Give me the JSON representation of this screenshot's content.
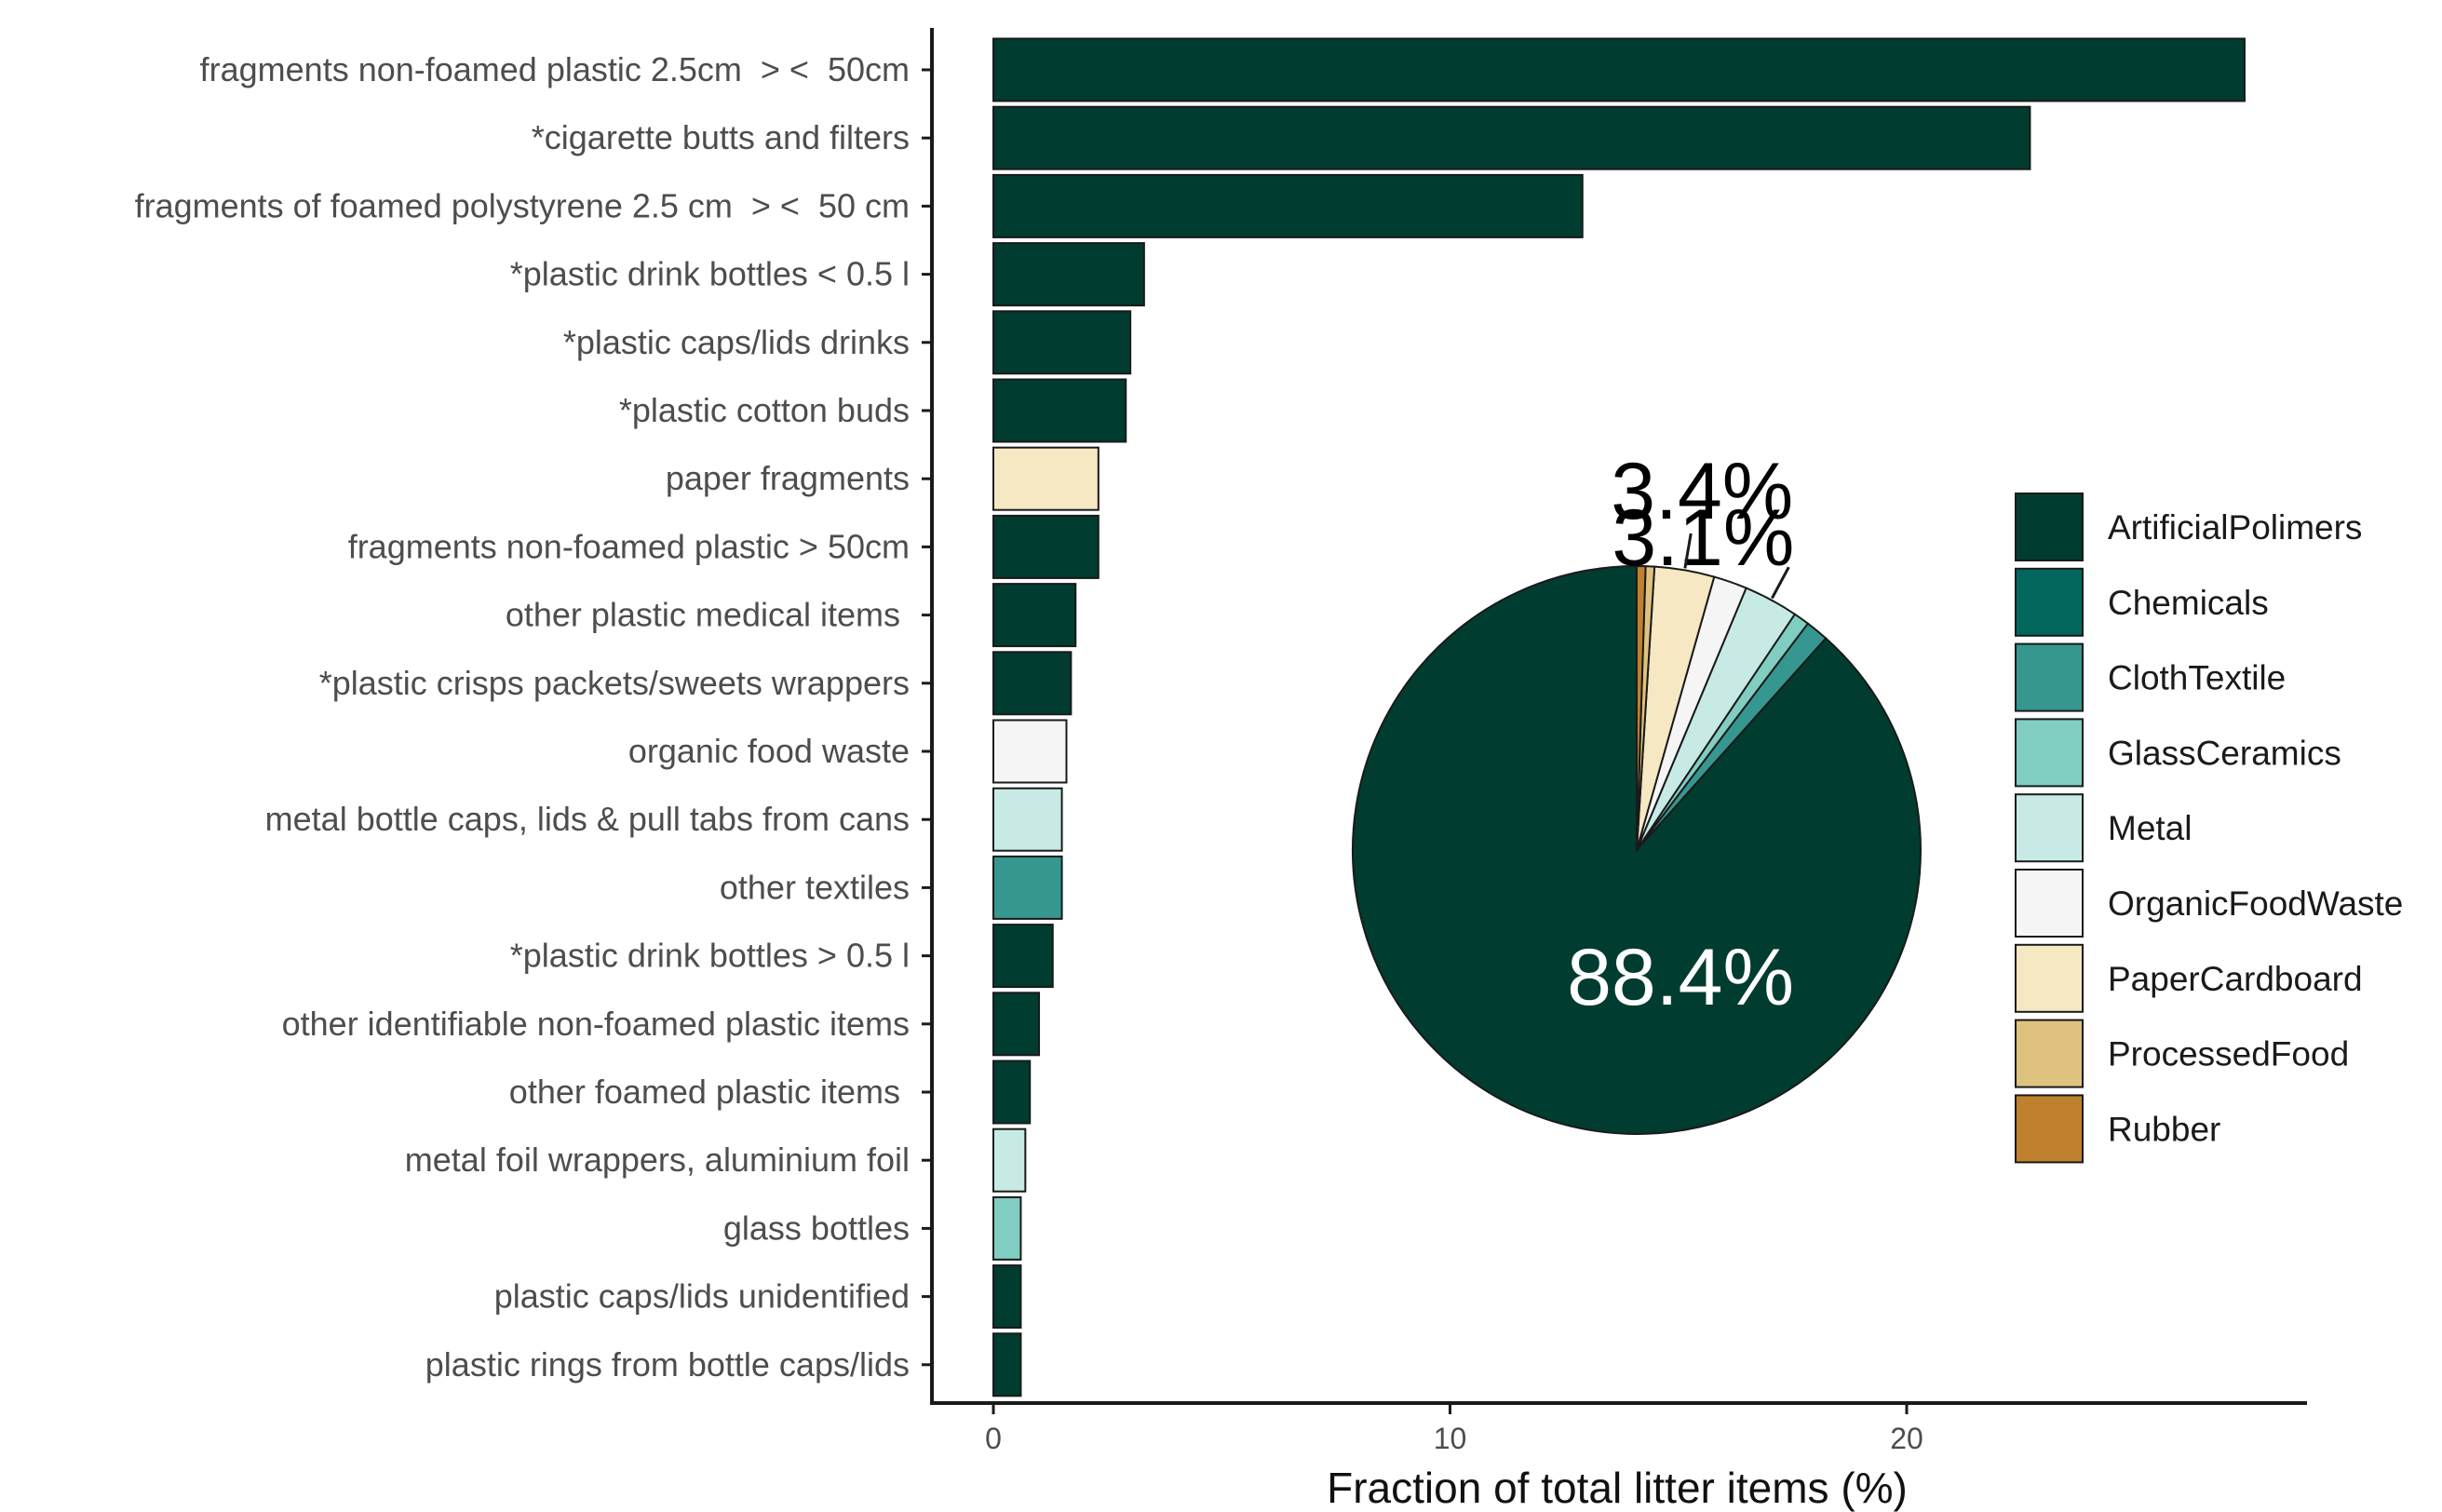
{
  "chart_data": [
    {
      "type": "bar",
      "orientation": "horizontal",
      "xlabel": "Fraction of total litter items (%)",
      "ylabel": "",
      "xlim": [
        0,
        28
      ],
      "xticks": [
        0,
        10,
        20
      ],
      "grid": false,
      "categories": [
        "fragments non-foamed plastic 2.5cm  > <  50cm",
        "*cigarette butts and filters",
        "fragments of foamed polystyrene 2.5 cm  > <  50 cm",
        "*plastic drink bottles < 0.5 l",
        "*plastic caps/lids drinks",
        "*plastic cotton buds",
        "paper fragments",
        "fragments non-foamed plastic > 50cm",
        "other plastic medical items ",
        "*plastic crisps packets/sweets wrappers",
        "organic food waste",
        "metal bottle caps, lids & pull tabs from cans",
        "other textiles",
        "*plastic drink bottles > 0.5 l",
        "other identifiable non-foamed plastic items",
        "other foamed plastic items ",
        "metal foil wrappers, aluminium foil",
        "glass bottles",
        "plastic caps/lids unidentified",
        "plastic rings from bottle caps/lids"
      ],
      "values": [
        27.4,
        22.7,
        12.9,
        3.3,
        3.0,
        2.9,
        2.3,
        2.3,
        1.8,
        1.7,
        1.6,
        1.5,
        1.5,
        1.3,
        1.0,
        0.8,
        0.7,
        0.6,
        0.6,
        0.6
      ],
      "material": [
        "ArtificialPolimers",
        "ArtificialPolimers",
        "ArtificialPolimers",
        "ArtificialPolimers",
        "ArtificialPolimers",
        "ArtificialPolimers",
        "PaperCardboard",
        "ArtificialPolimers",
        "ArtificialPolimers",
        "ArtificialPolimers",
        "OrganicFoodWaste",
        "Metal",
        "ClothTextile",
        "ArtificialPolimers",
        "ArtificialPolimers",
        "ArtificialPolimers",
        "Metal",
        "GlassCeramics",
        "ArtificialPolimers",
        "ArtificialPolimers"
      ]
    },
    {
      "type": "pie",
      "labels": [
        "ArtificialPolimers",
        "ClothTextile",
        "GlassCeramics",
        "Metal",
        "OrganicFoodWaste",
        "PaperCardboard",
        "ProcessedFood",
        "Rubber"
      ],
      "values": [
        88.4,
        1.3,
        0.9,
        3.1,
        1.9,
        3.4,
        0.5,
        0.5
      ],
      "slice_labels": [
        "88.4%",
        "",
        "",
        "3.1%",
        "",
        "3.4%",
        "",
        ""
      ]
    }
  ],
  "legend": {
    "placement": "right",
    "items": [
      {
        "label": "ArtificialPolimers",
        "color": "#003c30"
      },
      {
        "label": "Chemicals",
        "color": "#01665e"
      },
      {
        "label": "ClothTextile",
        "color": "#35978f"
      },
      {
        "label": "GlassCeramics",
        "color": "#80cdc1"
      },
      {
        "label": "Metal",
        "color": "#c7eae5"
      },
      {
        "label": "OrganicFoodWaste",
        "color": "#f5f5f5"
      },
      {
        "label": "PaperCardboard",
        "color": "#f6e8c3"
      },
      {
        "label": "ProcessedFood",
        "color": "#dfc27d"
      },
      {
        "label": "Rubber",
        "color": "#bf812d"
      }
    ]
  }
}
